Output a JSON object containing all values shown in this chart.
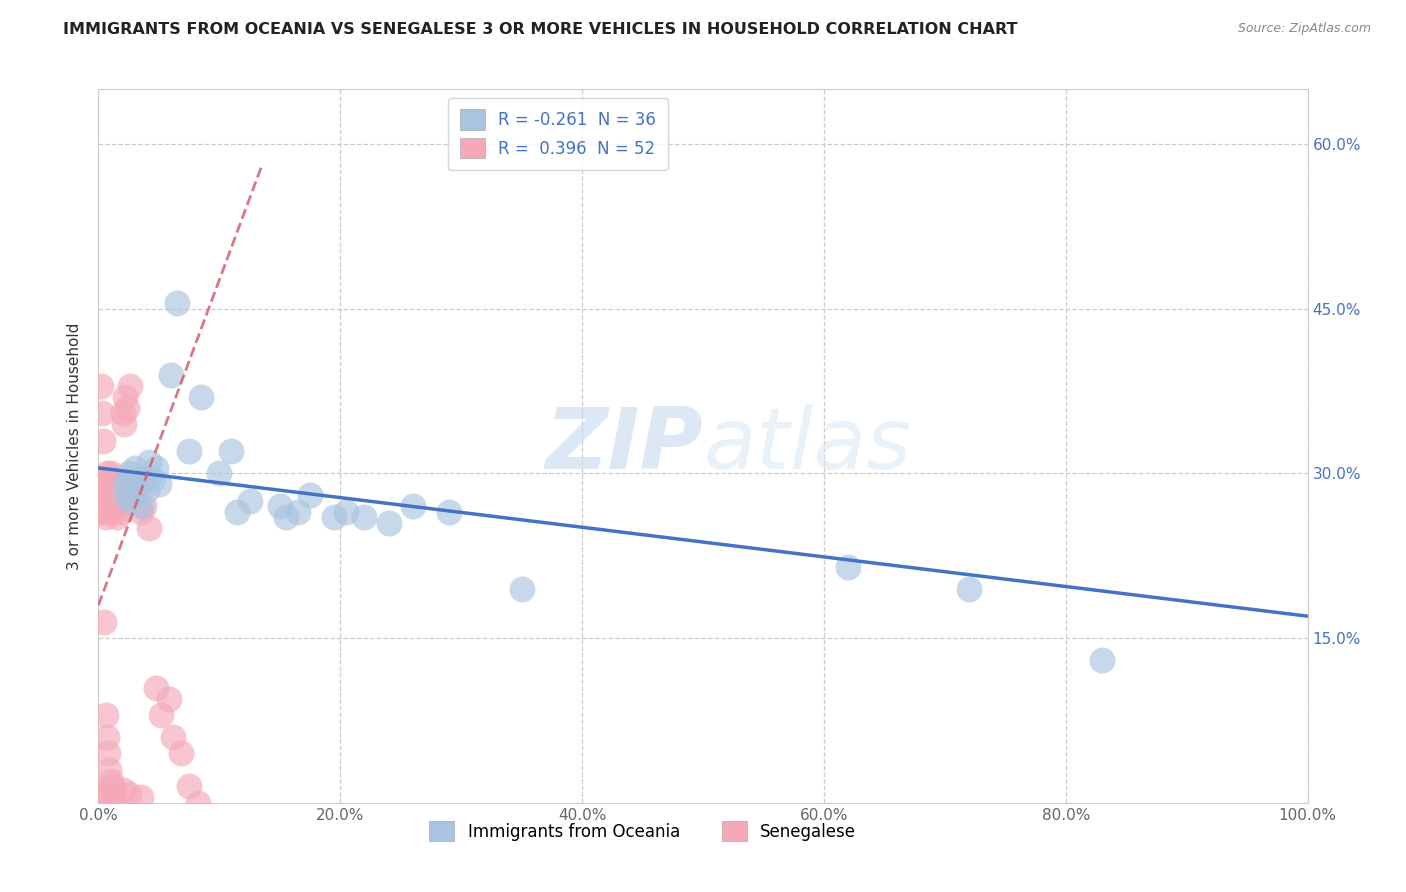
{
  "title": "IMMIGRANTS FROM OCEANIA VS SENEGALESE 3 OR MORE VEHICLES IN HOUSEHOLD CORRELATION CHART",
  "source": "Source: ZipAtlas.com",
  "ylabel": "3 or more Vehicles in Household",
  "xlim": [
    0.0,
    1.0
  ],
  "ylim": [
    0.0,
    0.65
  ],
  "xtick_labels": [
    "0.0%",
    "20.0%",
    "40.0%",
    "60.0%",
    "80.0%",
    "100.0%"
  ],
  "ytick_labels": [
    "15.0%",
    "30.0%",
    "45.0%",
    "60.0%"
  ],
  "yticks": [
    0.15,
    0.3,
    0.45,
    0.6
  ],
  "R_oceania": -0.261,
  "N_oceania": 36,
  "R_senegalese": 0.396,
  "N_senegalese": 52,
  "oceania_color": "#a8c4e0",
  "senegalese_color": "#f4a8b8",
  "trend_oceania_color": "#4472c4",
  "trend_senegalese_color": "#d06070",
  "watermark_zip": "ZIP",
  "watermark_atlas": "atlas",
  "legend_items": [
    "Immigrants from Oceania",
    "Senegalese"
  ],
  "oceania_x": [
    0.022,
    0.023,
    0.025,
    0.026,
    0.028,
    0.03,
    0.032,
    0.035,
    0.038,
    0.04,
    0.042,
    0.045,
    0.048,
    0.05,
    0.06,
    0.065,
    0.075,
    0.085,
    0.1,
    0.11,
    0.115,
    0.125,
    0.15,
    0.155,
    0.165,
    0.175,
    0.195,
    0.205,
    0.22,
    0.24,
    0.26,
    0.29,
    0.35,
    0.62,
    0.72,
    0.83
  ],
  "oceania_y": [
    0.29,
    0.28,
    0.3,
    0.275,
    0.295,
    0.305,
    0.28,
    0.27,
    0.295,
    0.285,
    0.31,
    0.295,
    0.305,
    0.29,
    0.39,
    0.455,
    0.32,
    0.37,
    0.3,
    0.32,
    0.265,
    0.275,
    0.27,
    0.26,
    0.265,
    0.28,
    0.26,
    0.265,
    0.26,
    0.255,
    0.27,
    0.265,
    0.195,
    0.215,
    0.195,
    0.13
  ],
  "senegalese_x": [
    0.002,
    0.003,
    0.003,
    0.004,
    0.004,
    0.005,
    0.005,
    0.005,
    0.006,
    0.006,
    0.006,
    0.007,
    0.007,
    0.007,
    0.008,
    0.008,
    0.008,
    0.008,
    0.009,
    0.009,
    0.01,
    0.01,
    0.01,
    0.011,
    0.011,
    0.012,
    0.012,
    0.013,
    0.013,
    0.014,
    0.015,
    0.015,
    0.016,
    0.017,
    0.018,
    0.02,
    0.021,
    0.022,
    0.024,
    0.026,
    0.03,
    0.032,
    0.035,
    0.038,
    0.042,
    0.048,
    0.052,
    0.058,
    0.062,
    0.068,
    0.075,
    0.082
  ],
  "senegalese_y": [
    0.28,
    0.275,
    0.265,
    0.29,
    0.285,
    0.295,
    0.28,
    0.27,
    0.295,
    0.285,
    0.26,
    0.3,
    0.275,
    0.28,
    0.295,
    0.285,
    0.275,
    0.265,
    0.285,
    0.29,
    0.295,
    0.275,
    0.3,
    0.28,
    0.27,
    0.295,
    0.265,
    0.285,
    0.27,
    0.275,
    0.29,
    0.26,
    0.275,
    0.265,
    0.28,
    0.355,
    0.345,
    0.37,
    0.36,
    0.38,
    0.285,
    0.29,
    0.265,
    0.27,
    0.25,
    0.105,
    0.08,
    0.095,
    0.06,
    0.045,
    0.015,
    0.0
  ],
  "seng_extra_low": [
    [
      0.002,
      0.38
    ],
    [
      0.003,
      0.355
    ],
    [
      0.004,
      0.33
    ],
    [
      0.005,
      0.165
    ],
    [
      0.006,
      0.08
    ],
    [
      0.007,
      0.06
    ],
    [
      0.008,
      0.045
    ],
    [
      0.009,
      0.03
    ],
    [
      0.01,
      0.02
    ],
    [
      0.011,
      0.015
    ],
    [
      0.012,
      0.01
    ],
    [
      0.013,
      0.005
    ],
    [
      0.02,
      0.012
    ],
    [
      0.025,
      0.008
    ],
    [
      0.035,
      0.005
    ],
    [
      0.002,
      0.01
    ],
    [
      0.003,
      0.008
    ]
  ]
}
